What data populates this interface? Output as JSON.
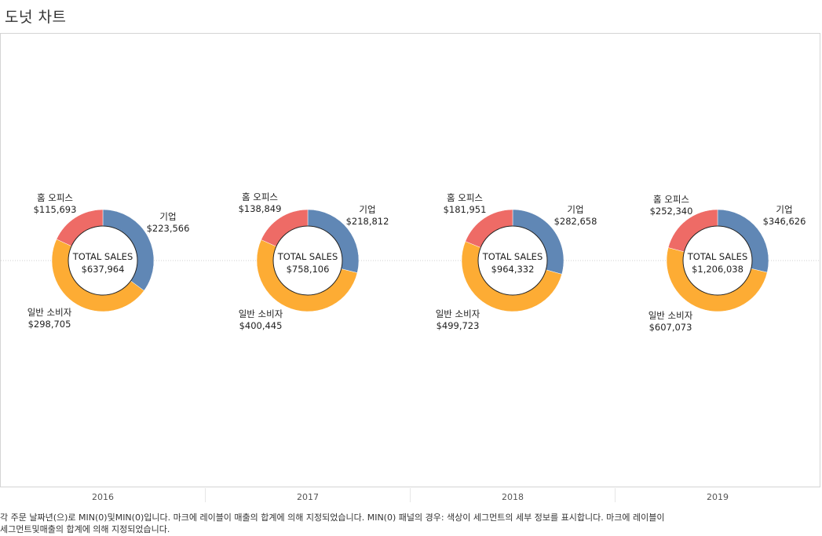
{
  "title": "도넛 차트",
  "footer": {
    "line1": "각 주문 날짜년(으)로 MIN(0)및MIN(0)입니다. 마크에 레이블이 매출의 합계에 의해 지정되었습니다. MIN(0) 패널의 경우: 색상이 세그먼트의 세부 정보를 표시합니다. 마크에 레이블이",
    "line2": "세그먼트및매출의 합계에 의해 지정되었습니다."
  },
  "colors": {
    "기업": "#6087b5",
    "일반 소비자": "#fdac34",
    "홈 오피스": "#ee6b66"
  },
  "chart_data": {
    "type": "pie",
    "subtype": "donut",
    "categories": [
      "2016",
      "2017",
      "2018",
      "2019"
    ],
    "segments": [
      "기업",
      "일반 소비자",
      "홈 오피스"
    ],
    "center_label": "TOTAL SALES",
    "donuts": [
      {
        "year": "2016",
        "total_label": "$637,964",
        "slices": [
          {
            "segment": "기업",
            "value": 223566,
            "label": "$223,566"
          },
          {
            "segment": "일반 소비자",
            "value": 298705,
            "label": "$298,705"
          },
          {
            "segment": "홈 오피스",
            "value": 115693,
            "label": "$115,693"
          }
        ]
      },
      {
        "year": "2017",
        "total_label": "$758,106",
        "slices": [
          {
            "segment": "기업",
            "value": 218812,
            "label": "$218,812"
          },
          {
            "segment": "일반 소비자",
            "value": 400445,
            "label": "$400,445"
          },
          {
            "segment": "홈 오피스",
            "value": 138849,
            "label": "$138,849"
          }
        ]
      },
      {
        "year": "2018",
        "total_label": "$964,332",
        "slices": [
          {
            "segment": "기업",
            "value": 282658,
            "label": "$282,658"
          },
          {
            "segment": "일반 소비자",
            "value": 499723,
            "label": "$499,723"
          },
          {
            "segment": "홈 오피스",
            "value": 181951,
            "label": "$181,951"
          }
        ]
      },
      {
        "year": "2019",
        "total_label": "$1,206,038",
        "slices": [
          {
            "segment": "기업",
            "value": 346626,
            "label": "$346,626"
          },
          {
            "segment": "일반 소비자",
            "value": 607073,
            "label": "$607,073"
          },
          {
            "segment": "홈 오피스",
            "value": 252340,
            "label": "$252,340"
          }
        ]
      }
    ]
  }
}
